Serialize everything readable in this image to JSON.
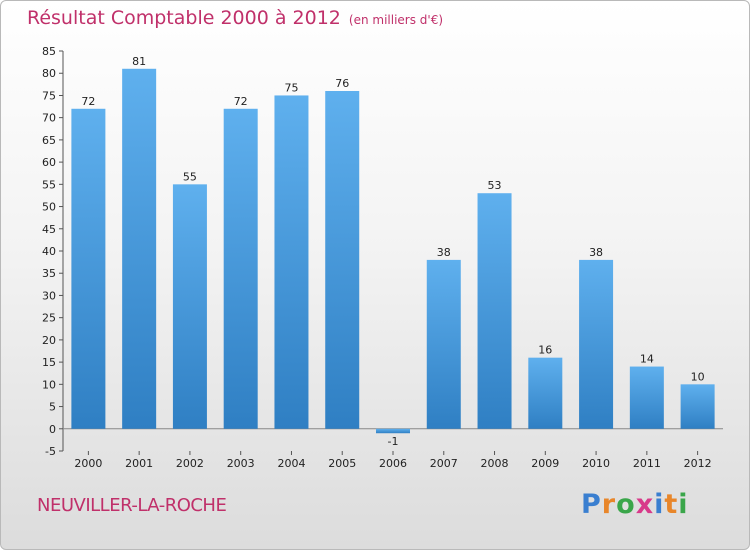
{
  "header": {
    "title": "Résultat Comptable 2000 à 2012",
    "subtitle": "(en milliers d'€)"
  },
  "footer": {
    "commune": "NEUVILLER-LA-ROCHE",
    "logo_letters": [
      "P",
      "r",
      "o",
      "x",
      "i",
      "t",
      "i"
    ],
    "logo_colors": [
      "#3a7fd0",
      "#e8862a",
      "#3aa64a",
      "#d83a8a",
      "#3a7fd0",
      "#e8862a",
      "#3aa64a"
    ]
  },
  "chart_data": {
    "type": "bar",
    "title": "Résultat Comptable 2000 à 2012",
    "subtitle": "(en milliers d'€)",
    "xlabel": "",
    "ylabel": "",
    "categories": [
      "2000",
      "2001",
      "2002",
      "2003",
      "2004",
      "2005",
      "2006",
      "2007",
      "2008",
      "2009",
      "2010",
      "2011",
      "2012"
    ],
    "values": [
      72,
      81,
      55,
      72,
      75,
      76,
      -1,
      38,
      53,
      16,
      38,
      14,
      10
    ],
    "ylim": [
      -5,
      85
    ],
    "yticks": [
      -5,
      0,
      5,
      10,
      15,
      20,
      25,
      30,
      35,
      40,
      45,
      50,
      55,
      60,
      65,
      70,
      75,
      80,
      85
    ],
    "grid": false,
    "bar_color": "#4a9ede"
  }
}
